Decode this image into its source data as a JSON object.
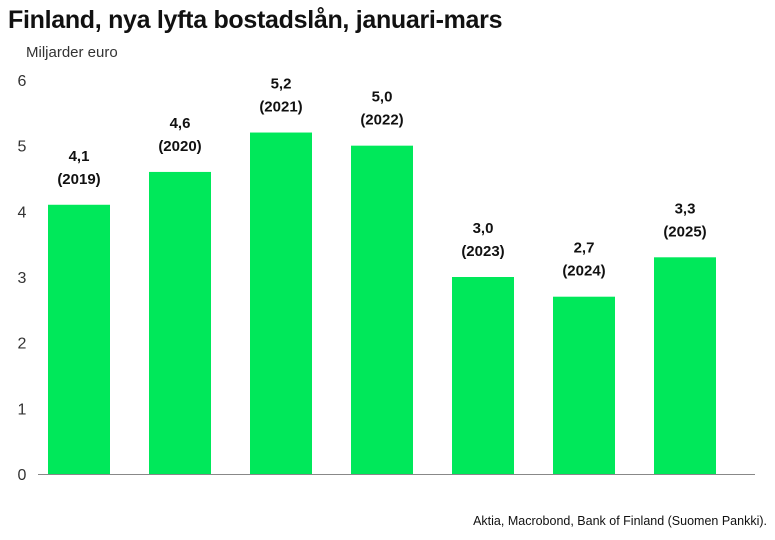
{
  "chart_data": {
    "type": "bar",
    "title": "Finland, nya lyfta bostadslån, januari-mars",
    "ylabel": "Miljarder euro",
    "xlabel": "",
    "source": "Aktia, Macrobond, Bank of Finland (Suomen Pankki).",
    "categories": [
      "2019",
      "2020",
      "2021",
      "2022",
      "2023",
      "2024",
      "2025"
    ],
    "values": [
      4.1,
      4.6,
      5.2,
      5.0,
      3.0,
      2.7,
      3.3
    ],
    "value_labels": [
      "4,1",
      "4,6",
      "5,2",
      "5,0",
      "3,0",
      "2,7",
      "3,3"
    ],
    "category_labels": [
      "(2019)",
      "(2020)",
      "(2021)",
      "(2022)",
      "(2023)",
      "(2024)",
      "(2025)"
    ],
    "ylim": [
      0,
      6
    ],
    "yticks": [
      "0",
      "1",
      "2",
      "3",
      "4",
      "5",
      "6"
    ],
    "grid": false,
    "bar_color": "#00e85a",
    "axis_color": "#888888"
  }
}
